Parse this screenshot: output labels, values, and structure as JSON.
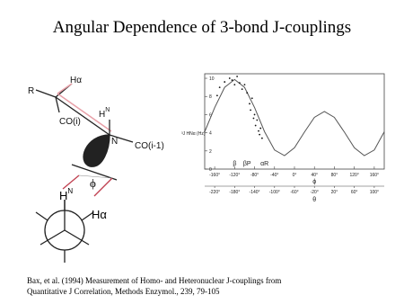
{
  "title": "Angular Dependence of 3-bond J-couplings",
  "diagram": {
    "r": "R",
    "h_alpha": "Hα",
    "hn": {
      "base": "H",
      "sup": "N"
    },
    "n": "N",
    "co_i": "CO(i)",
    "co_i1": "CO(i-1)",
    "phi": "ϕ",
    "newman_hn": {
      "base": "H",
      "sup": "N"
    },
    "newman_ha": "Hα"
  },
  "citation": [
    "Bax, et al. (1994) Measurement of Homo- and Heteronuclear J-couplings from",
    "Quantitative J Correlation,  Methods Enzymol., 239, 79-105"
  ],
  "chart_data": {
    "type": "line",
    "y_label": "³J HNα (Hz)",
    "x_label": "ϕ",
    "x2_label": "θ",
    "annotations": [
      "β",
      "βP",
      "αR"
    ],
    "x": [
      -180,
      -160,
      -140,
      -120,
      -100,
      -80,
      -60,
      -40,
      -20,
      0,
      20,
      40,
      60,
      80,
      100,
      120,
      140,
      160,
      180
    ],
    "values": [
      4.11,
      6.77,
      9.0,
      9.87,
      9.0,
      6.77,
      4.11,
      2.1,
      1.49,
      2.35,
      4.07,
      5.7,
      6.35,
      5.7,
      4.07,
      2.35,
      1.49,
      2.1,
      4.11
    ],
    "color": "#555",
    "points": {
      "x": [
        -155,
        -150,
        -140,
        -130,
        -125,
        -120,
        -115,
        -110,
        -105,
        -100,
        -95,
        -90,
        -88,
        -85,
        -82,
        -80,
        -78,
        -75,
        -72,
        -70,
        -68,
        -65
      ],
      "values": [
        8.1,
        9.0,
        9.6,
        10.0,
        9.8,
        9.3,
        10.2,
        9.5,
        8.8,
        9.3,
        8.4,
        7.2,
        6.5,
        7.8,
        5.6,
        6.0,
        4.8,
        5.4,
        4.2,
        3.8,
        4.5,
        3.4
      ],
      "color": "#111"
    },
    "xlim": [
      -180,
      180
    ],
    "ylim": [
      0,
      10.5
    ],
    "xticks": [
      {
        "value": -160,
        "label": "-160°"
      },
      {
        "value": -120,
        "label": "-120°"
      },
      {
        "value": -80,
        "label": "-80°"
      },
      {
        "value": -40,
        "label": "-40°"
      },
      {
        "value": 0,
        "label": "0°"
      },
      {
        "value": 40,
        "label": "40°"
      },
      {
        "value": 80,
        "label": "80°"
      },
      {
        "value": 120,
        "label": "120°"
      },
      {
        "value": 160,
        "label": "160°"
      }
    ],
    "x2ticks": [
      {
        "value": -160,
        "label": "-220°"
      },
      {
        "value": -120,
        "label": "-180°"
      },
      {
        "value": -80,
        "label": "-140°"
      },
      {
        "value": -40,
        "label": "-100°"
      },
      {
        "value": 0,
        "label": "-60°"
      },
      {
        "value": 40,
        "label": "-20°"
      },
      {
        "value": 80,
        "label": "20°"
      },
      {
        "value": 120,
        "label": "60°"
      },
      {
        "value": 160,
        "label": "100°"
      }
    ],
    "yticks": [
      0,
      2,
      4,
      6,
      8,
      10
    ],
    "grid": false
  }
}
